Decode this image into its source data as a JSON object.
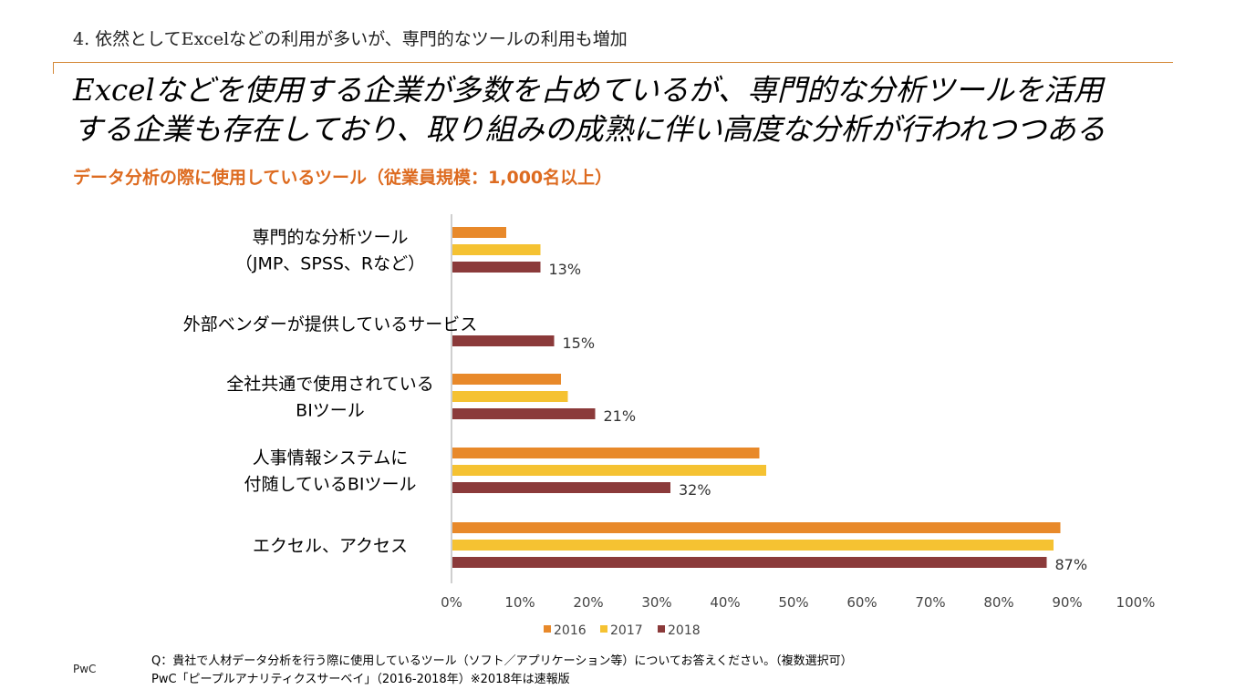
{
  "header": {
    "section_title": "4. 依然としてExcelなどの利用が多いが、専門的なツールの利用も増加",
    "headline_line1": "Excelなどを使用する企業が多数を占めているが、専門的な分析ツールを活用",
    "headline_line2": "する企業も存在しており、取り組みの成熟に伴い高度な分析が行われつつある",
    "subtitle": "データ分析の際に使用しているツール（従業員規模：1,000名以上）"
  },
  "footer": {
    "brand": "PwC",
    "question": "Q：貴社で人材データ分析を行う際に使用しているツール（ソフト／アプリケーション等）についてお答えください。（複数選択可）",
    "source": "PwC「ピープルアナリティクスサーベイ」（2016-2018年）※2018年は速報版"
  },
  "colors": {
    "s2016": "#e8892a",
    "s2017": "#f5c232",
    "s2018": "#8b3a3a",
    "axis": "#bfbfbf",
    "accent": "#dd6b20"
  },
  "chart_data": {
    "type": "bar",
    "orientation": "horizontal",
    "categories": [
      [
        "専門的な分析ツール",
        "（JMP、SPSS、Rなど）"
      ],
      [
        "外部ベンダーが提供しているサービス"
      ],
      [
        "全社共通で使用されている",
        "BIツール"
      ],
      [
        "人事情報システムに",
        "付随しているBIツール"
      ],
      [
        "エクセル、アクセス"
      ]
    ],
    "series": [
      {
        "name": "2016",
        "color": "#e8892a",
        "values": [
          8,
          null,
          16,
          45,
          89
        ]
      },
      {
        "name": "2017",
        "color": "#f5c232",
        "values": [
          13,
          null,
          17,
          46,
          88
        ]
      },
      {
        "name": "2018",
        "color": "#8b3a3a",
        "values": [
          13,
          15,
          21,
          32,
          87
        ]
      }
    ],
    "data_labels": [
      "13%",
      "15%",
      "21%",
      "32%",
      "87%"
    ],
    "x_ticks": [
      "0%",
      "10%",
      "20%",
      "30%",
      "40%",
      "50%",
      "60%",
      "70%",
      "80%",
      "90%",
      "100%"
    ],
    "xlim": [
      0,
      100
    ],
    "legend": [
      "2016",
      "2017",
      "2018"
    ],
    "legend_position": "bottom"
  }
}
